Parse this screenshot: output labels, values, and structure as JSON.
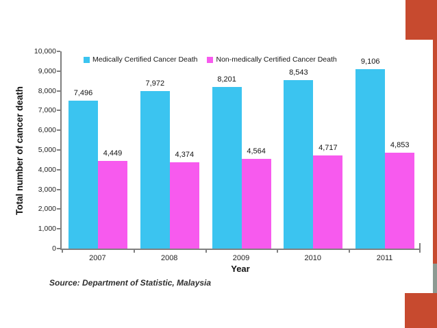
{
  "slide": {
    "background": "#FFFFFF",
    "accents": {
      "red": "#C74A2F",
      "grey": "#8D9A93"
    },
    "source_note": "Source: Department of Statistic, Malaysia"
  },
  "chart_data": {
    "type": "bar",
    "title": "",
    "xlabel": "Year",
    "ylabel": "Total number of cancer death",
    "categories": [
      "2007",
      "2008",
      "2009",
      "2010",
      "2011"
    ],
    "series": [
      {
        "name": "Medically Certified Cancer Death",
        "key": "medically-certified",
        "color": "#3BC4F0",
        "values": [
          7496,
          7972,
          8201,
          8543,
          9106
        ],
        "value_labels": [
          "7,496",
          "7,972",
          "8,201",
          "8,543",
          "9,106"
        ]
      },
      {
        "name": "Non-medically Certified Cancer Death",
        "key": "non-medically-certified",
        "color": "#F75AEE",
        "values": [
          4449,
          4374,
          4564,
          4717,
          4853
        ],
        "value_labels": [
          "4,449",
          "4,374",
          "4,564",
          "4,717",
          "4,853"
        ]
      }
    ],
    "ylim": [
      0,
      10000
    ],
    "ytick_step": 1000,
    "ytick_labels": [
      "0",
      "1,000",
      "2,000",
      "3,000",
      "4,000",
      "5,000",
      "6,000",
      "7,000",
      "8,000",
      "9,000",
      "10,000"
    ],
    "grid": false,
    "value_labels_shown": true,
    "legend_position": "top-inside"
  }
}
